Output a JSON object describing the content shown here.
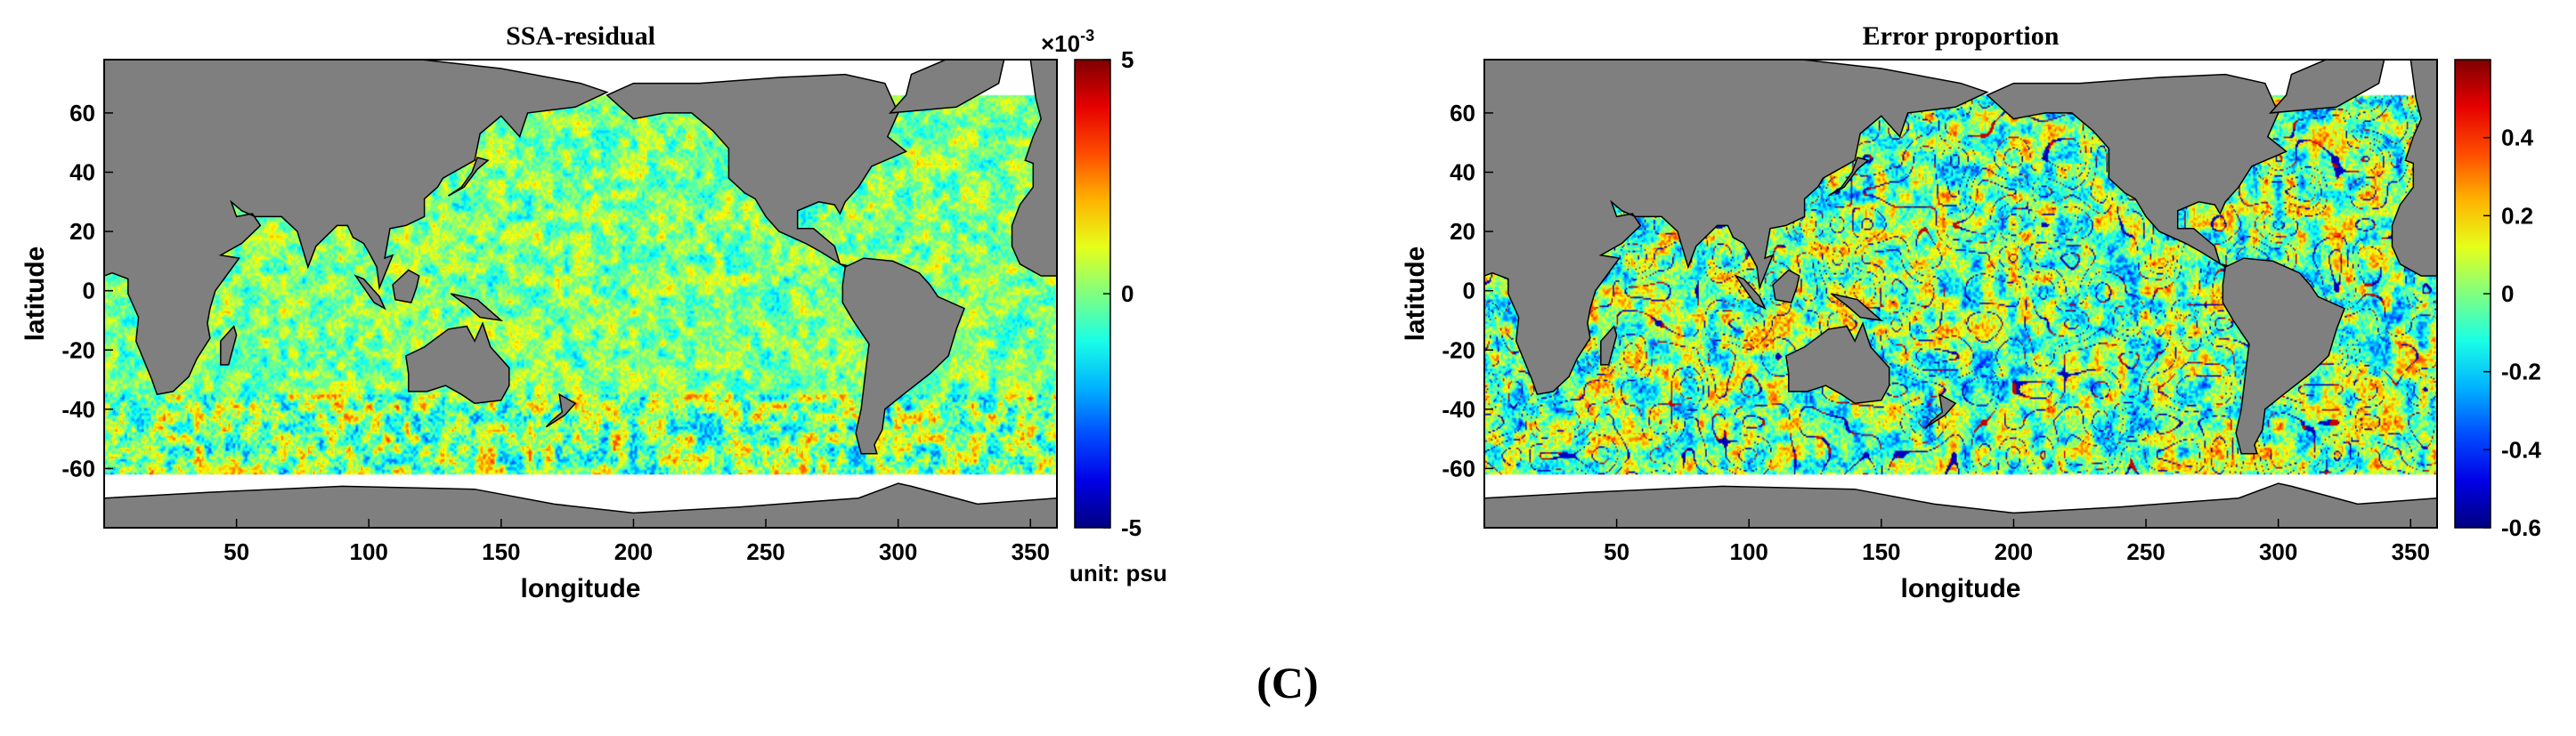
{
  "figure": {
    "panel_label": "(C)"
  },
  "chart_data": [
    {
      "type": "heatmap",
      "title": "SSA-residual",
      "xlabel": "longitude",
      "ylabel": "latitude",
      "xlim": [
        0,
        360
      ],
      "ylim": [
        -80,
        78
      ],
      "xticks": [
        50,
        100,
        150,
        200,
        250,
        300,
        350
      ],
      "yticks": [
        60,
        40,
        20,
        0,
        -20,
        -40,
        -60
      ],
      "colorbar": {
        "colormap": "jet",
        "range": [
          -5,
          5
        ],
        "ticks": [
          5,
          0,
          -5
        ],
        "multiplier": "×10",
        "exponent": "-3",
        "unit_label": "unit: psu"
      },
      "field_description": "small residuals near zero (mostly green/cyan); scattered yellow-red and blue patches, strongest in the Southern Ocean band",
      "noise_scale": 0.28,
      "noise_amp": 0.13,
      "speckle_amp": 0.1
    },
    {
      "type": "heatmap",
      "title": "Error proportion",
      "xlabel": "longitude",
      "ylabel": "latitude",
      "xlim": [
        0,
        360
      ],
      "ylim": [
        -80,
        78
      ],
      "xticks": [
        50,
        100,
        150,
        200,
        250,
        300,
        350
      ],
      "yticks": [
        60,
        40,
        20,
        0,
        -20,
        -40,
        -60
      ],
      "colorbar": {
        "colormap": "jet",
        "range": [
          -0.6,
          0.6
        ],
        "ticks": [
          0.4,
          0.2,
          0,
          -0.2,
          -0.4,
          -0.6
        ]
      },
      "field_description": "mostly green near 0 with dark-blue/red filament patterns along ocean eddy structures",
      "noise_scale": 0.22,
      "noise_amp": 0.24,
      "speckle_amp": 0.16
    }
  ],
  "colors": {
    "land": "#7f7f7f",
    "land_outline": "#000000",
    "nodata": "#ffffff",
    "frame": "#000000"
  }
}
